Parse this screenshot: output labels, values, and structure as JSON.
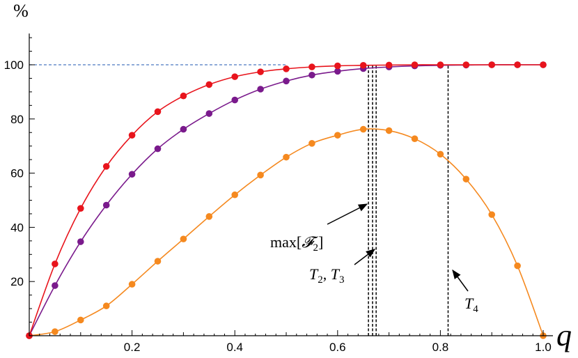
{
  "chart_data": {
    "type": "line",
    "xlabel": "q",
    "ylabel": "%",
    "xlim": [
      0,
      1.0
    ],
    "ylim": [
      0,
      110
    ],
    "x_ticks": [
      0.2,
      0.4,
      0.6,
      0.8,
      1.0
    ],
    "x_tick_labels": [
      "0.2",
      "0.4",
      "0.6",
      "0.8",
      "1.0"
    ],
    "y_ticks": [
      20,
      40,
      60,
      80,
      100
    ],
    "y_tick_labels": [
      "20",
      "40",
      "60",
      "80",
      "100"
    ],
    "reference_line": {
      "y": 100,
      "color": "#4a78c0",
      "style": "dashed"
    },
    "x": [
      0,
      0.05,
      0.1,
      0.15,
      0.2,
      0.25,
      0.3,
      0.35,
      0.4,
      0.45,
      0.5,
      0.55,
      0.6,
      0.65,
      0.7,
      0.75,
      0.8,
      0.85,
      0.9,
      0.95,
      1.0
    ],
    "series": [
      {
        "color": "#e8141c",
        "values": [
          0,
          26.5,
          47,
          62.5,
          74,
          82.7,
          88.5,
          92.7,
          95.6,
          97.4,
          98.5,
          99.2,
          99.6,
          99.8,
          99.9,
          100,
          100,
          100,
          100,
          100,
          100
        ]
      },
      {
        "color": "#7a1a8c",
        "values": [
          0,
          18.5,
          34.7,
          48.2,
          59.6,
          69,
          76.2,
          82,
          87,
          91,
          94,
          96.2,
          97.6,
          98.6,
          99.2,
          99.6,
          99.8,
          99.9,
          100,
          100,
          100
        ]
      },
      {
        "color": "#f5891f",
        "values": [
          0,
          1.5,
          5.8,
          11,
          19,
          27.5,
          35.7,
          44,
          52,
          59.3,
          65.9,
          71,
          74,
          76.2,
          75.7,
          72.7,
          67,
          57.8,
          44.7,
          25.8,
          0
        ]
      }
    ],
    "vertical_markers": [
      {
        "x": 0.66,
        "label": "max[𝓕₂]"
      },
      {
        "x": 0.668,
        "label": ""
      },
      {
        "x": 0.675,
        "label": "T₂, T₃"
      },
      {
        "x": 0.815,
        "label": "T₄"
      }
    ],
    "annotations": {
      "max_label_main": "max[",
      "max_label_script": "𝓕",
      "max_label_sub": "2",
      "max_label_close": "]",
      "t23_label_T": "T",
      "t23_label_sub1": "2",
      "t23_label_sep": ", ",
      "t23_label_T2": "T",
      "t23_label_sub2": "3",
      "t4_label_T": "T",
      "t4_label_sub": "4"
    }
  }
}
